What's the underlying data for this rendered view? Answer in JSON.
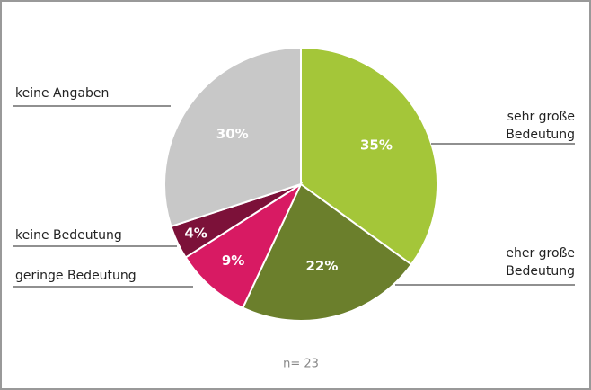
{
  "chart_data": {
    "type": "pie",
    "categories": [
      [
        "sehr große",
        "Bedeutung"
      ],
      [
        "eher große",
        "Bedeutung"
      ],
      [
        "geringe Bedeutung"
      ],
      [
        "keine Bedeutung"
      ],
      [
        "keine Angaben"
      ]
    ],
    "values": [
      35,
      22,
      9,
      4,
      30
    ],
    "value_labels": [
      "35%",
      "22%",
      "9%",
      "4%",
      "30%"
    ],
    "colors": [
      "#a4c639",
      "#6b7f2c",
      "#d81a63",
      "#7c1139",
      "#c8c8c8"
    ],
    "note": "n= 23"
  }
}
